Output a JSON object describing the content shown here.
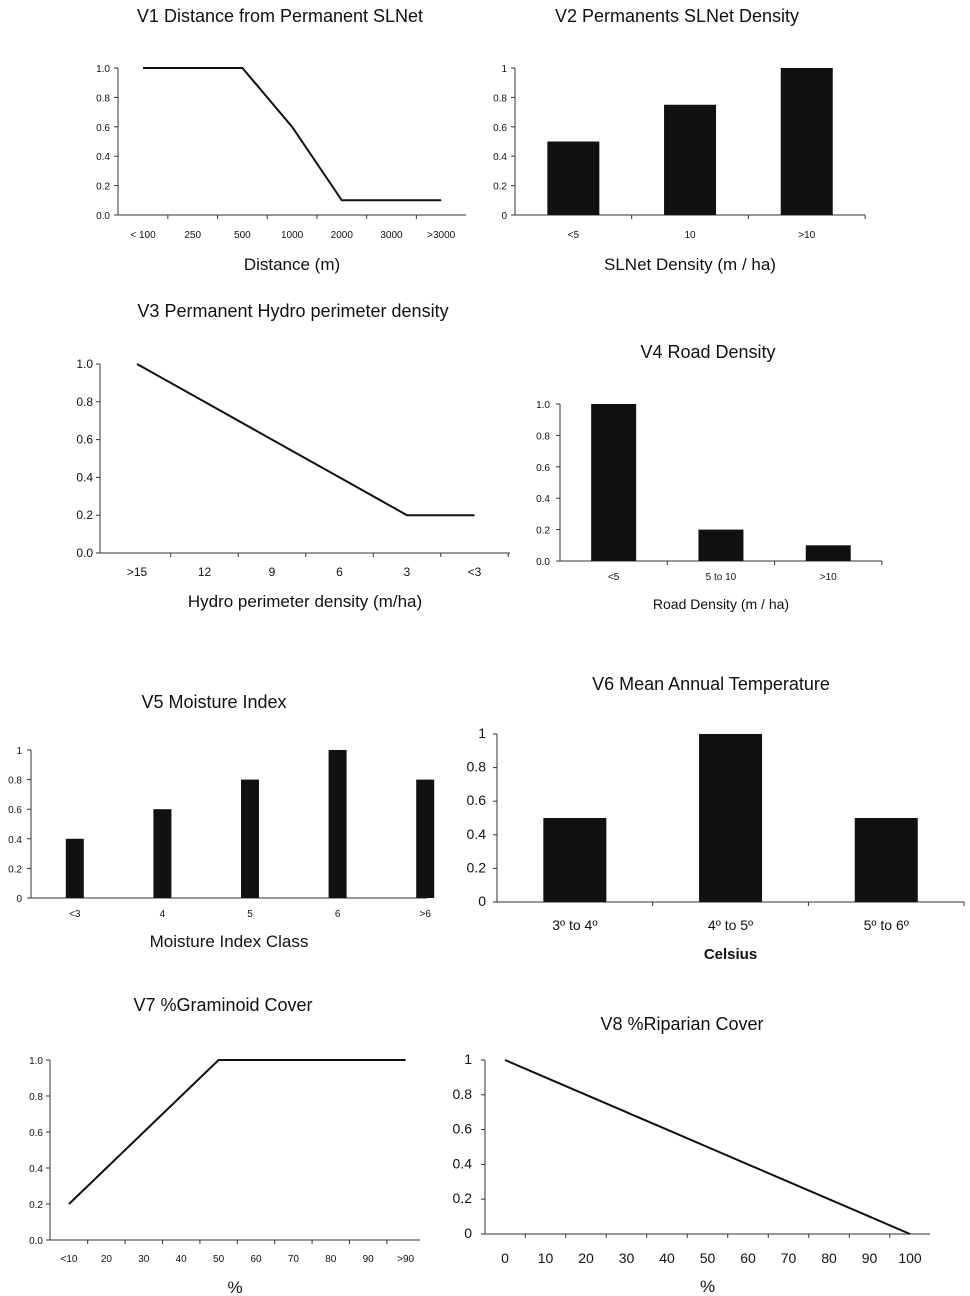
{
  "chart_data": [
    {
      "id": "v1",
      "type": "line",
      "title": "V1 Distance from Permanent SLNet",
      "xlabel": "Distance (m)",
      "ylabel": "",
      "categories": [
        "< 100",
        "250",
        "500",
        "1000",
        "2000",
        "3000",
        ">3000"
      ],
      "values": [
        1.0,
        1.0,
        1.0,
        0.6,
        0.1,
        0.1,
        0.1
      ],
      "y_ticks": [
        "0.0",
        "0.2",
        "0.4",
        "0.6",
        "0.8",
        "1.0"
      ],
      "ylim": [
        0,
        1
      ]
    },
    {
      "id": "v2",
      "type": "bar",
      "title": "V2 Permanents SLNet Density",
      "xlabel": "SLNet Density (m / ha)",
      "ylabel": "",
      "categories": [
        "<5",
        "10",
        ">10"
      ],
      "values": [
        0.5,
        0.75,
        1.0
      ],
      "y_ticks": [
        "0",
        "0.2",
        "0.4",
        "0.6",
        "0.8",
        "1"
      ],
      "ylim": [
        0,
        1
      ]
    },
    {
      "id": "v3",
      "type": "line",
      "title": "V3 Permanent Hydro perimeter density",
      "xlabel": "Hydro perimeter density (m/ha)",
      "ylabel": "",
      "categories": [
        ">15",
        "12",
        "9",
        "6",
        "3",
        "<3"
      ],
      "values": [
        1.0,
        0.8,
        0.6,
        0.4,
        0.2,
        0.2
      ],
      "y_ticks": [
        "0.0",
        "0.2",
        "0.4",
        "0.6",
        "0.8",
        "1.0"
      ],
      "ylim": [
        0,
        1
      ]
    },
    {
      "id": "v4",
      "type": "bar",
      "title": "V4 Road Density",
      "xlabel": "Road Density (m / ha)",
      "ylabel": "",
      "categories": [
        "<5",
        "5 to 10",
        ">10"
      ],
      "values": [
        1.0,
        0.2,
        0.1
      ],
      "y_ticks": [
        "0.0",
        "0.2",
        "0.4",
        "0.6",
        "0.8",
        "1.0"
      ],
      "ylim": [
        0,
        1
      ]
    },
    {
      "id": "v5",
      "type": "bar",
      "title": "V5 Moisture Index",
      "xlabel": "Moisture Index Class",
      "ylabel": "",
      "categories": [
        "<3",
        "4",
        "5",
        "6",
        ">6"
      ],
      "values": [
        0.4,
        0.6,
        0.8,
        1.0,
        0.8
      ],
      "y_ticks": [
        "0",
        "0.2",
        "0.4",
        "0.6",
        "0.8",
        "1"
      ],
      "ylim": [
        0,
        1
      ]
    },
    {
      "id": "v6",
      "type": "bar",
      "title": "V6 Mean Annual Temperature",
      "xlabel": "Celsius",
      "ylabel": "",
      "categories": [
        "3º to 4º",
        "4º to 5º",
        "5º to 6º"
      ],
      "values": [
        0.5,
        1.0,
        0.5
      ],
      "y_ticks": [
        "0",
        "0.2",
        "0.4",
        "0.6",
        "0.8",
        "1"
      ],
      "ylim": [
        0,
        1
      ]
    },
    {
      "id": "v7",
      "type": "line",
      "title": "V7 %Graminoid Cover",
      "xlabel": "%",
      "ylabel": "",
      "categories": [
        "<10",
        "20",
        "30",
        "40",
        "50",
        "60",
        "70",
        "80",
        "90",
        ">90"
      ],
      "values": [
        0.2,
        0.4,
        0.6,
        0.8,
        1.0,
        1.0,
        1.0,
        1.0,
        1.0,
        1.0
      ],
      "y_ticks": [
        "0.0",
        "0.2",
        "0.4",
        "0.6",
        "0.8",
        "1.0"
      ],
      "ylim": [
        0,
        1
      ]
    },
    {
      "id": "v8",
      "type": "line",
      "title": "V8 %Riparian Cover",
      "xlabel": "%",
      "ylabel": "",
      "categories": [
        "0",
        "10",
        "20",
        "30",
        "40",
        "50",
        "60",
        "70",
        "80",
        "90",
        "100"
      ],
      "values": [
        1.0,
        0.9,
        0.8,
        0.7,
        0.6,
        0.5,
        0.4,
        0.3,
        0.2,
        0.1,
        0.0
      ],
      "y_ticks": [
        "0",
        "0.2",
        "0.4",
        "0.6",
        "0.8",
        "1"
      ],
      "ylim": [
        0,
        1
      ]
    }
  ]
}
